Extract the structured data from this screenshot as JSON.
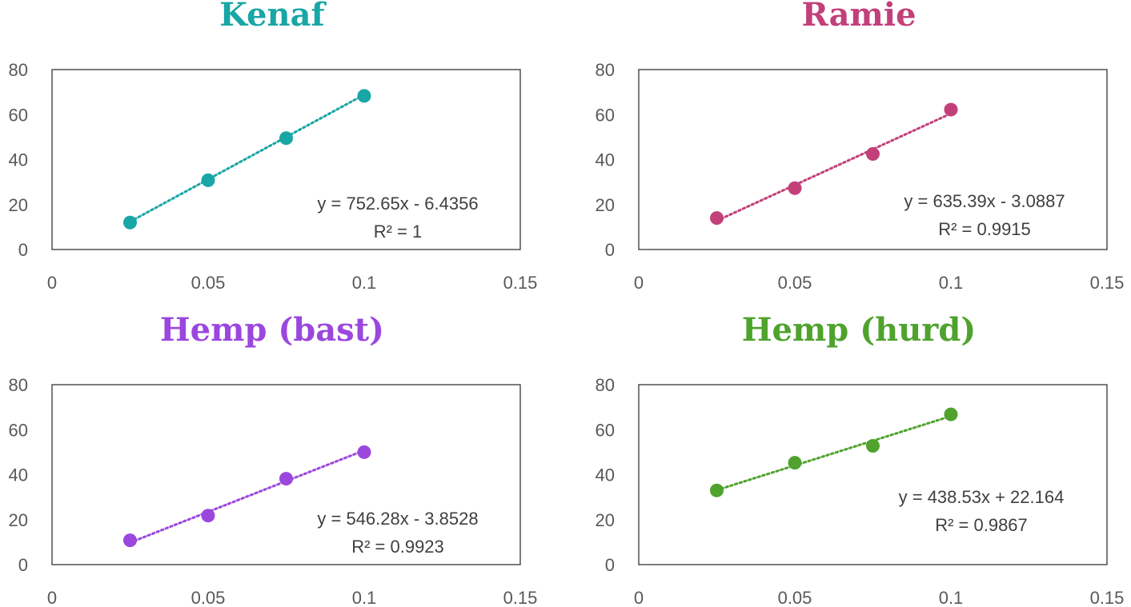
{
  "chart_data": [
    {
      "type": "scatter",
      "title": "Kenaf",
      "color": "#19A6A6",
      "x": [
        0.025,
        0.05,
        0.075,
        0.1
      ],
      "y": [
        12,
        30.8,
        49.5,
        68.3
      ],
      "xlim": [
        0,
        0.15
      ],
      "ylim": [
        0,
        80
      ],
      "xticks": [
        "0",
        "0.05",
        "0.1",
        "0.15"
      ],
      "yticks": [
        "0",
        "20",
        "40",
        "60",
        "80"
      ],
      "trendline": {
        "slope": 752.65,
        "intercept": -6.4356
      },
      "equation": "y = 752.65x - 6.4356",
      "r2": "R² = 1"
    },
    {
      "type": "scatter",
      "title": "Ramie",
      "color": "#C2407A",
      "x": [
        0.025,
        0.05,
        0.075,
        0.1
      ],
      "y": [
        14,
        27.3,
        42.5,
        62.2
      ],
      "xlim": [
        0,
        0.15
      ],
      "ylim": [
        0,
        80
      ],
      "xticks": [
        "0",
        "0.05",
        "0.1",
        "0.15"
      ],
      "yticks": [
        "0",
        "20",
        "40",
        "60",
        "80"
      ],
      "trendline": {
        "slope": 635.39,
        "intercept": -3.0887
      },
      "equation": "y = 635.39x - 3.0887",
      "r2": "R² = 0.9915"
    },
    {
      "type": "scatter",
      "title": "Hemp (bast)",
      "color": "#9B47DE",
      "x": [
        0.025,
        0.05,
        0.075,
        0.1
      ],
      "y": [
        10.8,
        21.8,
        38.2,
        50
      ],
      "xlim": [
        0,
        0.15
      ],
      "ylim": [
        0,
        80
      ],
      "xticks": [
        "0",
        "0.05",
        "0.1",
        "0.15"
      ],
      "yticks": [
        "0",
        "20",
        "40",
        "60",
        "80"
      ],
      "trendline": {
        "slope": 546.28,
        "intercept": -3.8528
      },
      "equation": "y = 546.28x - 3.8528",
      "r2": "R² = 0.9923"
    },
    {
      "type": "scatter",
      "title": "Hemp (hurd)",
      "color": "#4FA32D",
      "x": [
        0.025,
        0.05,
        0.075,
        0.1
      ],
      "y": [
        33,
        45.3,
        52.8,
        66.8
      ],
      "xlim": [
        0,
        0.15
      ],
      "ylim": [
        0,
        80
      ],
      "xticks": [
        "0",
        "0.05",
        "0.1",
        "0.15"
      ],
      "yticks": [
        "0",
        "20",
        "40",
        "60",
        "80"
      ],
      "trendline": {
        "slope": 438.53,
        "intercept": 22.164
      },
      "equation": "y = 438.53x + 22.164",
      "r2": "R² = 0.9867"
    }
  ]
}
